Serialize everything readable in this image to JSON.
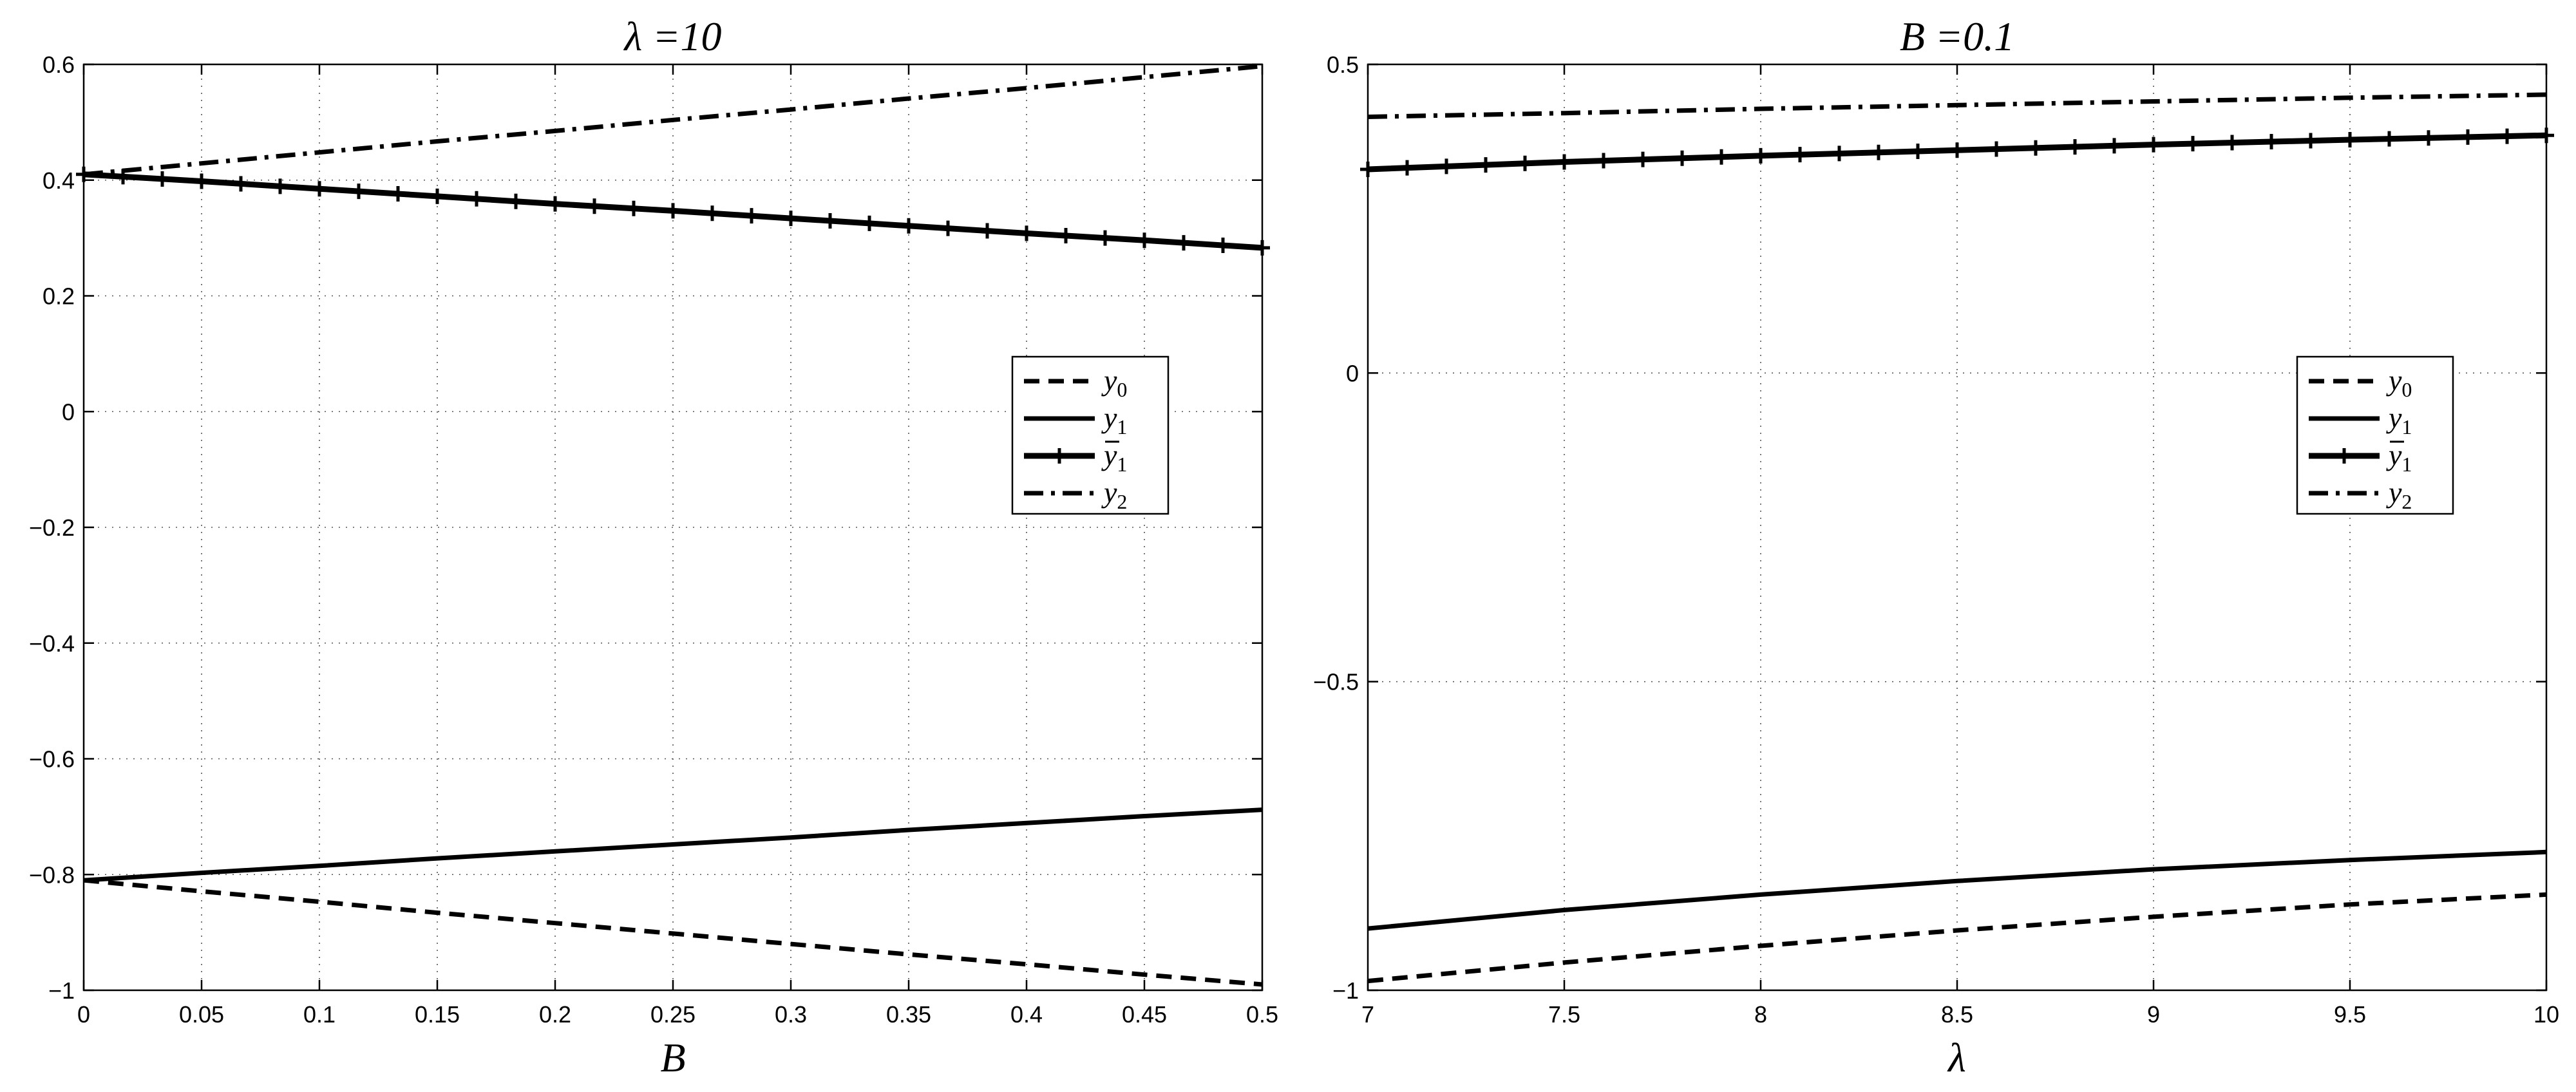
{
  "chart_data": [
    {
      "type": "line",
      "title": "λ =10",
      "xlabel": "B",
      "ylabel": "",
      "xlim": [
        0,
        0.5
      ],
      "ylim": [
        -1,
        0.6
      ],
      "grid": true,
      "legend_position": "right",
      "xticks": [
        0,
        0.05,
        0.1,
        0.15,
        0.2,
        0.25,
        0.3,
        0.35,
        0.4,
        0.45,
        0.5
      ],
      "xtick_labels": [
        "0",
        "0.05",
        "0.1",
        "0.15",
        "0.2",
        "0.25",
        "0.3",
        "0.35",
        "0.4",
        "0.45",
        "0.5"
      ],
      "yticks": [
        -1,
        -0.8,
        -0.6,
        -0.4,
        -0.2,
        0,
        0.2,
        0.4,
        0.6
      ],
      "ytick_labels": [
        "−1",
        "−0.8",
        "−0.6",
        "−0.4",
        "−0.2",
        "0",
        "0.2",
        "0.4",
        "0.6"
      ],
      "x": [
        0,
        0.05,
        0.1,
        0.15,
        0.2,
        0.25,
        0.3,
        0.35,
        0.4,
        0.45,
        0.5
      ],
      "series": [
        {
          "name": "y0",
          "style": "dashed",
          "values": [
            -0.81,
            -0.829,
            -0.847,
            -0.866,
            -0.884,
            -0.902,
            -0.92,
            -0.938,
            -0.955,
            -0.973,
            -0.99
          ]
        },
        {
          "name": "y1",
          "style": "solid",
          "values": [
            -0.81,
            -0.797,
            -0.785,
            -0.772,
            -0.76,
            -0.748,
            -0.736,
            -0.723,
            -0.711,
            -0.699,
            -0.688
          ]
        },
        {
          "name": "ȳ1",
          "style": "solid-plus",
          "values": [
            0.41,
            0.398,
            0.385,
            0.372,
            0.359,
            0.347,
            0.334,
            0.321,
            0.308,
            0.296,
            0.283
          ]
        },
        {
          "name": "y2",
          "style": "dashdot",
          "values": [
            0.41,
            0.429,
            0.448,
            0.467,
            0.485,
            0.504,
            0.522,
            0.541,
            0.559,
            0.578,
            0.597
          ]
        }
      ]
    },
    {
      "type": "line",
      "title": "B =0.1",
      "xlabel": "λ",
      "ylabel": "",
      "xlim": [
        7,
        10
      ],
      "ylim": [
        -1,
        0.5
      ],
      "grid": true,
      "legend_position": "right",
      "xticks": [
        7,
        7.5,
        8,
        8.5,
        9,
        9.5,
        10
      ],
      "xtick_labels": [
        "7",
        "7.5",
        "8",
        "8.5",
        "9",
        "9.5",
        "10"
      ],
      "yticks": [
        -1,
        -0.5,
        0,
        0.5
      ],
      "ytick_labels": [
        "−1",
        "−0.5",
        "0",
        "0.5"
      ],
      "x": [
        7,
        7.5,
        8,
        8.5,
        9,
        9.5,
        10
      ],
      "series": [
        {
          "name": "y0",
          "style": "dashed",
          "values": [
            -0.985,
            -0.955,
            -0.928,
            -0.903,
            -0.881,
            -0.861,
            -0.845
          ]
        },
        {
          "name": "y1",
          "style": "solid",
          "values": [
            -0.9,
            -0.87,
            -0.845,
            -0.823,
            -0.804,
            -0.789,
            -0.776
          ]
        },
        {
          "name": "ȳ1",
          "style": "solid-plus",
          "values": [
            0.33,
            0.342,
            0.352,
            0.361,
            0.37,
            0.378,
            0.385
          ]
        },
        {
          "name": "y2",
          "style": "dashdot",
          "values": [
            0.415,
            0.421,
            0.428,
            0.434,
            0.44,
            0.446,
            0.451
          ]
        }
      ]
    }
  ],
  "legend": {
    "entries": [
      {
        "base": "y",
        "sub": "0",
        "bar": false
      },
      {
        "base": "y",
        "sub": "1",
        "bar": false
      },
      {
        "base": "y",
        "sub": "1",
        "bar": true
      },
      {
        "base": "y",
        "sub": "2",
        "bar": false
      }
    ]
  }
}
